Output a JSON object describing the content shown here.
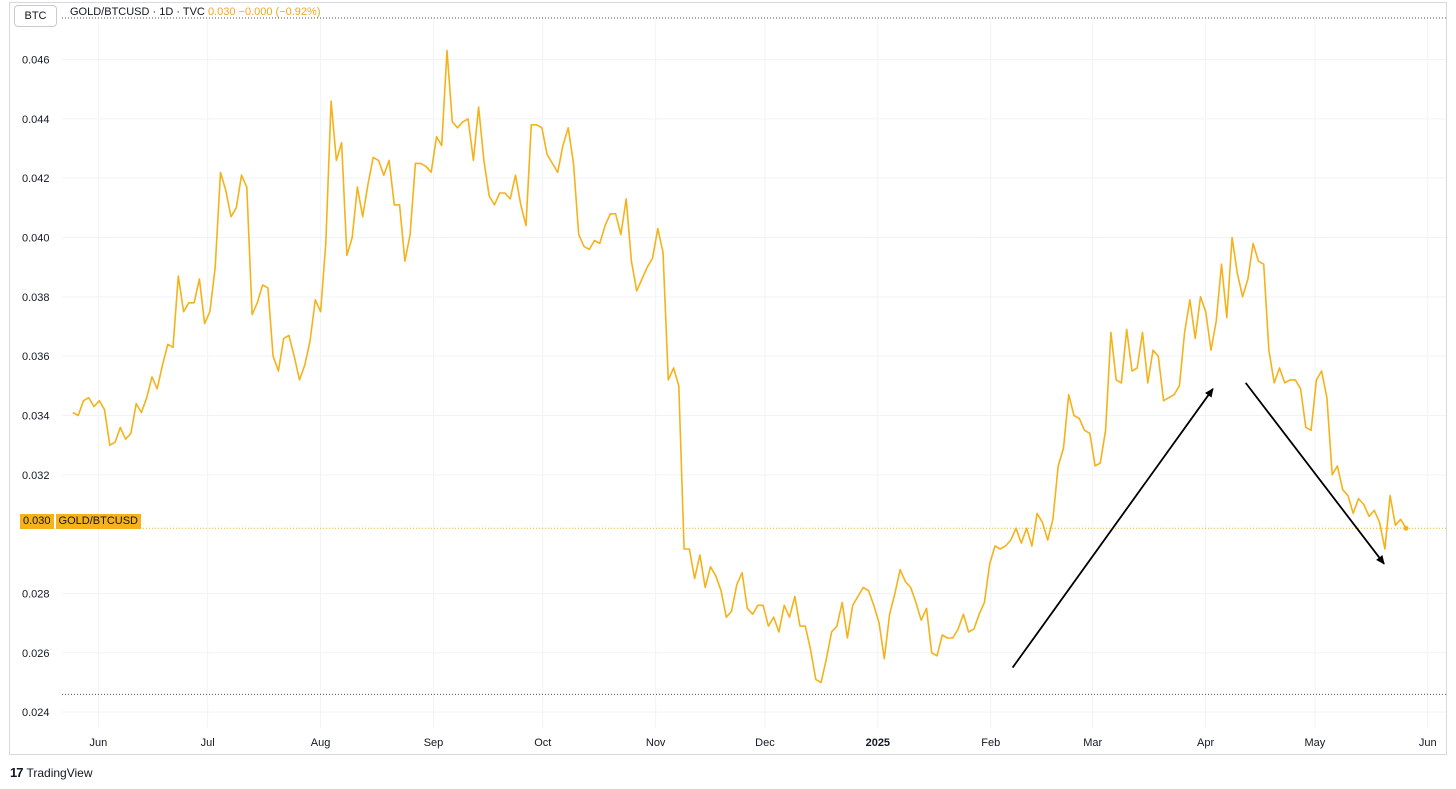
{
  "symbol_box": "BTC",
  "legend": {
    "title": "GOLD/BTCUSD · 1D · TVC",
    "value": "0.030",
    "change": "−0.000",
    "change_pct": "(−0.92%)"
  },
  "price_tag": {
    "value": "0.030",
    "label": "GOLD/BTCUSD"
  },
  "brand": {
    "logo": "17",
    "name": "TradingView"
  },
  "colors": {
    "line": "#f5b21a",
    "arrow": "#000000",
    "grid": "#f0f3fa"
  },
  "chart_data": {
    "type": "line",
    "title": "GOLD/BTCUSD · 1D · TVC",
    "xlabel": "",
    "ylabel": "",
    "ylim": [
      0.0236,
      0.0474
    ],
    "xlim_days": [
      0,
      380
    ],
    "y_ticks": [
      "0.024",
      "0.026",
      "0.028",
      "0.032",
      "0.034",
      "0.036",
      "0.038",
      "0.040",
      "0.042",
      "0.044",
      "0.046"
    ],
    "x_ticks": [
      {
        "label": "Jun",
        "day": 7,
        "bold": false
      },
      {
        "label": "Jul",
        "day": 37,
        "bold": false
      },
      {
        "label": "Aug",
        "day": 68,
        "bold": false
      },
      {
        "label": "Sep",
        "day": 99,
        "bold": false
      },
      {
        "label": "Oct",
        "day": 129,
        "bold": false
      },
      {
        "label": "Nov",
        "day": 160,
        "bold": false
      },
      {
        "label": "Dec",
        "day": 190,
        "bold": false
      },
      {
        "label": "2025",
        "day": 221,
        "bold": true
      },
      {
        "label": "Feb",
        "day": 252,
        "bold": false
      },
      {
        "label": "Mar",
        "day": 280,
        "bold": false
      },
      {
        "label": "Apr",
        "day": 311,
        "bold": false
      },
      {
        "label": "May",
        "day": 341,
        "bold": false
      },
      {
        "label": "Jun",
        "day": 372,
        "bold": false
      }
    ],
    "last_value": 0.0302,
    "high_marker": 0.0464,
    "low_marker": 0.0246,
    "series": [
      {
        "name": "GOLD/BTCUSD",
        "points": [
          [
            0,
            0.0341
          ],
          [
            1,
            0.034
          ],
          [
            2,
            0.0345
          ],
          [
            3,
            0.0346
          ],
          [
            4,
            0.0343
          ],
          [
            5,
            0.0345
          ],
          [
            6,
            0.0342
          ],
          [
            7,
            0.033
          ],
          [
            8,
            0.0331
          ],
          [
            9,
            0.0336
          ],
          [
            10,
            0.0332
          ],
          [
            11,
            0.0334
          ],
          [
            12,
            0.0344
          ],
          [
            13,
            0.0341
          ],
          [
            14,
            0.0346
          ],
          [
            15,
            0.0353
          ],
          [
            16,
            0.0349
          ],
          [
            17,
            0.0357
          ],
          [
            18,
            0.0364
          ],
          [
            19,
            0.0363
          ],
          [
            20,
            0.0387
          ],
          [
            21,
            0.0375
          ],
          [
            22,
            0.0378
          ],
          [
            23,
            0.0378
          ],
          [
            24,
            0.0386
          ],
          [
            25,
            0.0371
          ],
          [
            26,
            0.0375
          ],
          [
            27,
            0.039
          ],
          [
            28,
            0.0422
          ],
          [
            29,
            0.0416
          ],
          [
            30,
            0.0407
          ],
          [
            31,
            0.041
          ],
          [
            32,
            0.0421
          ],
          [
            33,
            0.0417
          ],
          [
            34,
            0.0374
          ],
          [
            35,
            0.0378
          ],
          [
            36,
            0.0384
          ],
          [
            37,
            0.0383
          ],
          [
            38,
            0.036
          ],
          [
            39,
            0.0355
          ],
          [
            40,
            0.0366
          ],
          [
            41,
            0.0367
          ],
          [
            42,
            0.036
          ],
          [
            43,
            0.0352
          ],
          [
            44,
            0.0357
          ],
          [
            45,
            0.0365
          ],
          [
            46,
            0.0379
          ],
          [
            47,
            0.0375
          ],
          [
            48,
            0.0398
          ],
          [
            49,
            0.0446
          ],
          [
            50,
            0.0426
          ],
          [
            51,
            0.0432
          ],
          [
            52,
            0.0394
          ],
          [
            53,
            0.04
          ],
          [
            54,
            0.0417
          ],
          [
            55,
            0.0407
          ],
          [
            56,
            0.0418
          ],
          [
            57,
            0.0427
          ],
          [
            58,
            0.0426
          ],
          [
            59,
            0.0421
          ],
          [
            60,
            0.0426
          ],
          [
            61,
            0.0411
          ],
          [
            62,
            0.0411
          ],
          [
            63,
            0.0392
          ],
          [
            64,
            0.0401
          ],
          [
            65,
            0.0425
          ],
          [
            66,
            0.0425
          ],
          [
            67,
            0.0424
          ],
          [
            68,
            0.0422
          ],
          [
            69,
            0.0434
          ],
          [
            70,
            0.0431
          ],
          [
            71,
            0.0463
          ],
          [
            72,
            0.0439
          ],
          [
            73,
            0.0437
          ],
          [
            74,
            0.0439
          ],
          [
            75,
            0.044
          ],
          [
            76,
            0.0426
          ],
          [
            77,
            0.0444
          ],
          [
            78,
            0.0426
          ],
          [
            79,
            0.0414
          ],
          [
            80,
            0.0411
          ],
          [
            81,
            0.0415
          ],
          [
            82,
            0.0415
          ],
          [
            83,
            0.0413
          ],
          [
            84,
            0.0421
          ],
          [
            85,
            0.0411
          ],
          [
            86,
            0.0404
          ],
          [
            87,
            0.0438
          ],
          [
            88,
            0.0438
          ],
          [
            89,
            0.0437
          ],
          [
            90,
            0.0428
          ],
          [
            91,
            0.0425
          ],
          [
            92,
            0.0422
          ],
          [
            93,
            0.0431
          ],
          [
            94,
            0.0437
          ],
          [
            95,
            0.0425
          ],
          [
            96,
            0.0401
          ],
          [
            97,
            0.0397
          ],
          [
            98,
            0.0396
          ],
          [
            99,
            0.0399
          ],
          [
            100,
            0.0398
          ],
          [
            101,
            0.0404
          ],
          [
            102,
            0.0408
          ],
          [
            103,
            0.0408
          ],
          [
            104,
            0.0401
          ],
          [
            105,
            0.0413
          ],
          [
            106,
            0.0392
          ],
          [
            107,
            0.0382
          ],
          [
            108,
            0.0386
          ],
          [
            109,
            0.039
          ],
          [
            110,
            0.0393
          ],
          [
            111,
            0.0403
          ],
          [
            112,
            0.0395
          ],
          [
            113,
            0.0352
          ],
          [
            114,
            0.0356
          ],
          [
            115,
            0.035
          ],
          [
            116,
            0.0295
          ],
          [
            117,
            0.0295
          ],
          [
            118,
            0.0285
          ],
          [
            119,
            0.0293
          ],
          [
            120,
            0.0282
          ],
          [
            121,
            0.0289
          ],
          [
            122,
            0.0286
          ],
          [
            123,
            0.0281
          ],
          [
            124,
            0.0272
          ],
          [
            125,
            0.0274
          ],
          [
            126,
            0.0283
          ],
          [
            127,
            0.0287
          ],
          [
            128,
            0.0275
          ],
          [
            129,
            0.0273
          ],
          [
            130,
            0.0276
          ],
          [
            131,
            0.0276
          ],
          [
            132,
            0.0269
          ],
          [
            133,
            0.0272
          ],
          [
            134,
            0.0267
          ],
          [
            135,
            0.0276
          ],
          [
            136,
            0.0272
          ],
          [
            137,
            0.0279
          ],
          [
            138,
            0.0269
          ],
          [
            139,
            0.0269
          ],
          [
            140,
            0.0261
          ],
          [
            141,
            0.0251
          ],
          [
            142,
            0.025
          ],
          [
            143,
            0.0258
          ],
          [
            144,
            0.0267
          ],
          [
            145,
            0.0269
          ],
          [
            146,
            0.0277
          ],
          [
            147,
            0.0265
          ],
          [
            148,
            0.0276
          ],
          [
            149,
            0.0279
          ],
          [
            150,
            0.0282
          ],
          [
            151,
            0.0281
          ],
          [
            152,
            0.0276
          ],
          [
            153,
            0.027
          ],
          [
            154,
            0.0258
          ],
          [
            155,
            0.0273
          ],
          [
            156,
            0.028
          ],
          [
            157,
            0.0288
          ],
          [
            158,
            0.0284
          ],
          [
            159,
            0.0282
          ],
          [
            160,
            0.0277
          ],
          [
            161,
            0.0271
          ],
          [
            162,
            0.0275
          ],
          [
            163,
            0.026
          ],
          [
            164,
            0.0259
          ],
          [
            165,
            0.0266
          ],
          [
            166,
            0.0265
          ],
          [
            167,
            0.0265
          ],
          [
            168,
            0.0268
          ],
          [
            169,
            0.0273
          ],
          [
            170,
            0.0267
          ],
          [
            171,
            0.0268
          ],
          [
            172,
            0.0273
          ],
          [
            173,
            0.0277
          ],
          [
            174,
            0.029
          ],
          [
            175,
            0.0296
          ],
          [
            176,
            0.0295
          ],
          [
            177,
            0.0296
          ],
          [
            178,
            0.0298
          ],
          [
            179,
            0.0302
          ],
          [
            180,
            0.0297
          ],
          [
            181,
            0.0302
          ],
          [
            182,
            0.0296
          ],
          [
            183,
            0.0307
          ],
          [
            184,
            0.0304
          ],
          [
            185,
            0.0298
          ],
          [
            186,
            0.0305
          ],
          [
            187,
            0.0323
          ],
          [
            188,
            0.0329
          ],
          [
            189,
            0.0347
          ],
          [
            190,
            0.034
          ],
          [
            191,
            0.0339
          ],
          [
            192,
            0.0335
          ],
          [
            193,
            0.0334
          ],
          [
            194,
            0.0323
          ],
          [
            195,
            0.0324
          ],
          [
            196,
            0.0335
          ],
          [
            197,
            0.0368
          ],
          [
            198,
            0.0352
          ],
          [
            199,
            0.0351
          ],
          [
            200,
            0.0369
          ],
          [
            201,
            0.0355
          ],
          [
            202,
            0.0356
          ],
          [
            203,
            0.0368
          ],
          [
            204,
            0.0351
          ],
          [
            205,
            0.0362
          ],
          [
            206,
            0.036
          ],
          [
            207,
            0.0345
          ],
          [
            208,
            0.0346
          ],
          [
            209,
            0.0347
          ],
          [
            210,
            0.035
          ],
          [
            211,
            0.0368
          ],
          [
            212,
            0.0379
          ],
          [
            213,
            0.0366
          ],
          [
            214,
            0.038
          ],
          [
            215,
            0.0375
          ],
          [
            216,
            0.0362
          ],
          [
            217,
            0.0372
          ],
          [
            218,
            0.0391
          ],
          [
            219,
            0.0373
          ],
          [
            220,
            0.04
          ],
          [
            221,
            0.0388
          ],
          [
            222,
            0.038
          ],
          [
            223,
            0.0386
          ],
          [
            224,
            0.0398
          ],
          [
            225,
            0.0392
          ],
          [
            226,
            0.0391
          ],
          [
            227,
            0.0362
          ],
          [
            228,
            0.0351
          ],
          [
            229,
            0.0356
          ],
          [
            230,
            0.0351
          ],
          [
            231,
            0.0352
          ],
          [
            232,
            0.0352
          ],
          [
            233,
            0.0349
          ],
          [
            234,
            0.0336
          ],
          [
            235,
            0.0335
          ],
          [
            236,
            0.0352
          ],
          [
            237,
            0.0355
          ],
          [
            238,
            0.0346
          ],
          [
            239,
            0.032
          ],
          [
            240,
            0.0323
          ],
          [
            241,
            0.0315
          ],
          [
            242,
            0.0313
          ],
          [
            243,
            0.0307
          ],
          [
            244,
            0.0312
          ],
          [
            245,
            0.031
          ],
          [
            246,
            0.0306
          ],
          [
            247,
            0.0308
          ],
          [
            248,
            0.0304
          ],
          [
            249,
            0.0295
          ],
          [
            250,
            0.0313
          ],
          [
            251,
            0.0303
          ],
          [
            252,
            0.0305
          ],
          [
            253,
            0.0302
          ]
        ],
        "x_start_day": 0,
        "x_end_day": 366
      }
    ],
    "annotations": [
      {
        "type": "arrow",
        "from": [
          258,
          0.0255
        ],
        "to": [
          313,
          0.0349
        ]
      },
      {
        "type": "arrow",
        "from": [
          322,
          0.0351
        ],
        "to": [
          360,
          0.029
        ]
      }
    ]
  }
}
